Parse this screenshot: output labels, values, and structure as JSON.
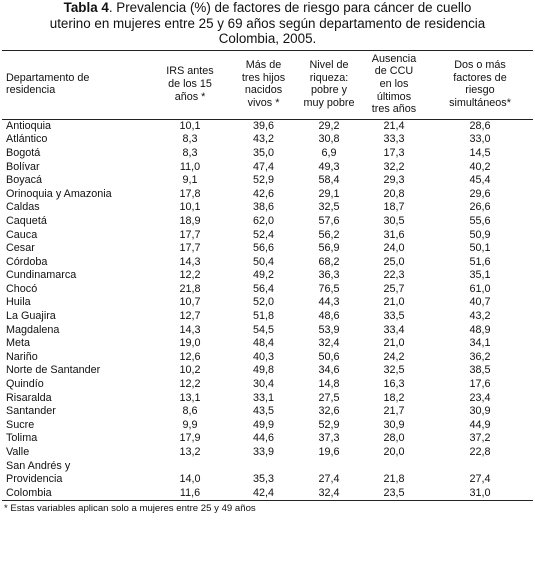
{
  "caption": {
    "label": "Tabla 4",
    "text_line1": ". Prevalencia (%) de factores de riesgo para cáncer de cuello",
    "text_line2": "uterino en mujeres entre 25 y 69 años según departamento de residencia",
    "text_line3": "Colombia, 2005."
  },
  "headers": {
    "c0": "Departamento de residencia",
    "c1": "IRS antes de los 15 años *",
    "c2": "Más de tres hijos nacidos vivos *",
    "c3": "Nivel de riqueza: pobre y muy pobre",
    "c4": "Ausencia de CCU en los últimos tres años",
    "c5": "Dos o más factores de riesgo simultáneos*"
  },
  "rows": [
    [
      "Antioquia",
      "10,1",
      "39,6",
      "29,2",
      "21,4",
      "28,6"
    ],
    [
      "Atlántico",
      "8,3",
      "43,2",
      "30,8",
      "33,3",
      "33,0"
    ],
    [
      "Bogotá",
      "8,3",
      "35,0",
      "6,9",
      "17,3",
      "14,5"
    ],
    [
      "Bolívar",
      "11,0",
      "47,4",
      "49,3",
      "32,2",
      "40,2"
    ],
    [
      "Boyacá",
      "9,1",
      "52,9",
      "58,4",
      "29,3",
      "45,4"
    ],
    [
      "Orinoquia y Amazonia",
      "17,8",
      "42,6",
      "29,1",
      "20,8",
      "29,6"
    ],
    [
      "Caldas",
      "10,1",
      "38,6",
      "32,5",
      "18,7",
      "26,6"
    ],
    [
      "Caquetá",
      "18,9",
      "62,0",
      "57,6",
      "30,5",
      "55,6"
    ],
    [
      "Cauca",
      "17,7",
      "52,4",
      "56,2",
      "31,6",
      "50,9"
    ],
    [
      "Cesar",
      "17,7",
      "56,6",
      "56,9",
      "24,0",
      "50,1"
    ],
    [
      "Córdoba",
      "14,3",
      "50,4",
      "68,2",
      "25,0",
      "51,6"
    ],
    [
      "Cundinamarca",
      "12,2",
      "49,2",
      "36,3",
      "22,3",
      "35,1"
    ],
    [
      "Chocó",
      "21,8",
      "56,4",
      "76,5",
      "25,7",
      "61,0"
    ],
    [
      "Huila",
      "10,7",
      "52,0",
      "44,3",
      "21,0",
      "40,7"
    ],
    [
      "La Guajira",
      "12,7",
      "51,8",
      "48,6",
      "33,5",
      "43,2"
    ],
    [
      "Magdalena",
      "14,3",
      "54,5",
      "53,9",
      "33,4",
      "48,9"
    ],
    [
      "Meta",
      "19,0",
      "48,4",
      "32,4",
      "21,0",
      "34,1"
    ],
    [
      "Nariño",
      "12,6",
      "40,3",
      "50,6",
      "24,2",
      "36,2"
    ],
    [
      "Norte de Santander",
      "10,2",
      "49,8",
      "34,6",
      "32,5",
      "38,5"
    ],
    [
      "Quindío",
      "12,2",
      "30,4",
      "14,8",
      "16,3",
      "17,6"
    ],
    [
      "Risaralda",
      "13,1",
      "33,1",
      "27,5",
      "18,2",
      "23,4"
    ],
    [
      "Santander",
      "8,6",
      "43,5",
      "32,6",
      "21,7",
      "30,9"
    ],
    [
      "Sucre",
      "9,9",
      "49,9",
      "52,9",
      "30,9",
      "44,9"
    ],
    [
      "Tolima",
      "17,9",
      "44,6",
      "37,3",
      "28,0",
      "37,2"
    ],
    [
      "Valle",
      "13,2",
      "33,9",
      "19,6",
      "20,0",
      "22,8"
    ]
  ],
  "multiline_row": {
    "line1": "San Andrés y",
    "line2": "Providencia",
    "values": [
      "14,0",
      "35,3",
      "27,4",
      "21,8",
      "27,4"
    ]
  },
  "total_row": [
    "Colombia",
    "11,6",
    "42,4",
    "32,4",
    "23,5",
    "31,0"
  ],
  "footnote": "* Estas variables aplican solo a mujeres entre 25 y 49 años"
}
